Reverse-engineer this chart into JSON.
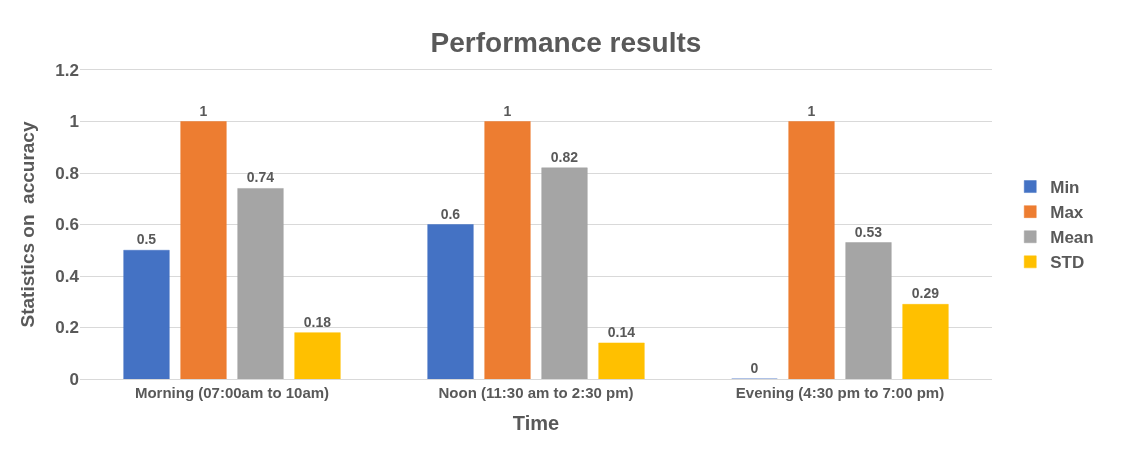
{
  "chart_data": {
    "type": "bar",
    "title": "Performance results",
    "xlabel": "Time",
    "ylabel": "Statistics on  accuracy",
    "categories": [
      "Morning (07:00am to 10am)",
      "Noon (11:30 am to 2:30 pm)",
      "Evening (4:30 pm to 7:00 pm)"
    ],
    "series": [
      {
        "name": "Min",
        "color": "#4472c4",
        "values": [
          0.5,
          0.6,
          0
        ]
      },
      {
        "name": "Max",
        "color": "#ed7d31",
        "values": [
          1,
          1,
          1
        ]
      },
      {
        "name": "Mean",
        "color": "#a5a5a5",
        "values": [
          0.74,
          0.82,
          0.53
        ]
      },
      {
        "name": "STD",
        "color": "#ffc000",
        "values": [
          0.18,
          0.14,
          0.29
        ]
      }
    ],
    "ylim": [
      0,
      1.2
    ],
    "yticks": [
      0,
      0.2,
      0.4,
      0.6,
      0.8,
      1,
      1.2
    ],
    "grid": "y",
    "legend": "right",
    "data_labels": true
  }
}
